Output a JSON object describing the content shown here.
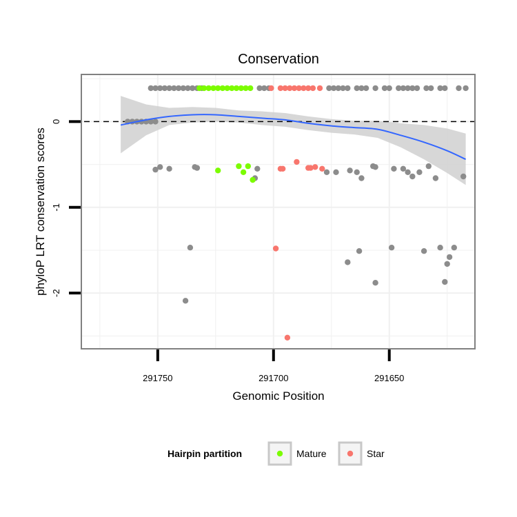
{
  "chart_data": {
    "type": "scatter",
    "title": "Conservation",
    "xlabel": "Genomic Position",
    "ylabel": "phyloP LRT conservation scores",
    "x_reversed": true,
    "xlim": [
      291783,
      291613
    ],
    "ylim": [
      -2.65,
      0.55
    ],
    "x_ticks": [
      291750,
      291700,
      291650
    ],
    "y_ticks": [
      0,
      -1,
      -2
    ],
    "reference_line_y": 0,
    "grid": true,
    "legend": {
      "title": "Hairpin partition",
      "position": "bottom",
      "entries": [
        {
          "label": "Mature",
          "color": "#7cfc00"
        },
        {
          "label": "Star",
          "color": "#f8766d"
        }
      ]
    },
    "colors": {
      "other": "#8c8c8c",
      "mature": "#7cfc00",
      "star": "#f8766d",
      "smooth_line": "#3366ff",
      "ribbon": "#d0d0d0"
    },
    "series": [
      {
        "group": "other",
        "points": [
          [
            291763,
            0
          ],
          [
            291761,
            0
          ],
          [
            291759,
            0
          ],
          [
            291757,
            0
          ],
          [
            291755,
            0
          ],
          [
            291753,
            0
          ],
          [
            291751,
            0
          ],
          [
            291753,
            0.39
          ],
          [
            291751,
            0.39
          ],
          [
            291749,
            0.39
          ],
          [
            291747,
            0.39
          ],
          [
            291745,
            0.39
          ],
          [
            291743,
            0.39
          ],
          [
            291741,
            0.39
          ],
          [
            291739,
            0.39
          ],
          [
            291737,
            0.39
          ],
          [
            291735,
            0.39
          ],
          [
            291733,
            0.39
          ],
          [
            291731,
            0.39
          ],
          [
            291706,
            0.39
          ],
          [
            291704,
            0.39
          ],
          [
            291702,
            0.39
          ],
          [
            291676,
            0.39
          ],
          [
            291674,
            0.39
          ],
          [
            291672,
            0.39
          ],
          [
            291670,
            0.39
          ],
          [
            291668,
            0.39
          ],
          [
            291664,
            0.39
          ],
          [
            291662,
            0.39
          ],
          [
            291660,
            0.39
          ],
          [
            291656,
            0.39
          ],
          [
            291652,
            0.39
          ],
          [
            291650,
            0.39
          ],
          [
            291646,
            0.39
          ],
          [
            291644,
            0.39
          ],
          [
            291642,
            0.39
          ],
          [
            291640,
            0.39
          ],
          [
            291638,
            0.39
          ],
          [
            291634,
            0.39
          ],
          [
            291632,
            0.39
          ],
          [
            291628,
            0.39
          ],
          [
            291626,
            0.39
          ],
          [
            291620,
            0.39
          ],
          [
            291617,
            0.39
          ],
          [
            291751,
            -0.56
          ],
          [
            291749,
            -0.53
          ],
          [
            291745,
            -0.55
          ],
          [
            291734,
            -0.53
          ],
          [
            291733,
            -0.54
          ],
          [
            291707,
            -0.55
          ],
          [
            291708,
            -0.66
          ],
          [
            291677,
            -0.59
          ],
          [
            291673,
            -0.59
          ],
          [
            291667,
            -0.57
          ],
          [
            291664,
            -0.59
          ],
          [
            291662,
            -0.66
          ],
          [
            291657,
            -0.52
          ],
          [
            291656,
            -0.53
          ],
          [
            291648,
            -0.55
          ],
          [
            291644,
            -0.55
          ],
          [
            291642,
            -0.59
          ],
          [
            291640,
            -0.64
          ],
          [
            291637,
            -0.59
          ],
          [
            291633,
            -0.52
          ],
          [
            291630,
            -0.66
          ],
          [
            291618,
            -0.64
          ],
          [
            291736,
            -1.47
          ],
          [
            291668,
            -1.64
          ],
          [
            291663,
            -1.51
          ],
          [
            291656,
            -1.88
          ],
          [
            291649,
            -1.47
          ],
          [
            291635,
            -1.51
          ],
          [
            291628,
            -1.47
          ],
          [
            291625,
            -1.66
          ],
          [
            291624,
            -1.58
          ],
          [
            291626,
            -1.87
          ],
          [
            291622,
            -1.47
          ],
          [
            291738,
            -2.09
          ]
        ]
      },
      {
        "group": "mature",
        "points": [
          [
            291732,
            0.39
          ],
          [
            291730,
            0.39
          ],
          [
            291728,
            0.39
          ],
          [
            291726,
            0.39
          ],
          [
            291724,
            0.39
          ],
          [
            291722,
            0.39
          ],
          [
            291720,
            0.39
          ],
          [
            291718,
            0.39
          ],
          [
            291716,
            0.39
          ],
          [
            291714,
            0.39
          ],
          [
            291712,
            0.39
          ],
          [
            291710,
            0.39
          ],
          [
            291724,
            -0.57
          ],
          [
            291715,
            -0.52
          ],
          [
            291713,
            -0.59
          ],
          [
            291711,
            -0.52
          ],
          [
            291709,
            -0.68
          ]
        ]
      },
      {
        "group": "star",
        "points": [
          [
            291701,
            0.39
          ],
          [
            291697,
            0.39
          ],
          [
            291695,
            0.39
          ],
          [
            291693,
            0.39
          ],
          [
            291691,
            0.39
          ],
          [
            291689,
            0.39
          ],
          [
            291687,
            0.39
          ],
          [
            291685,
            0.39
          ],
          [
            291683,
            0.39
          ],
          [
            291680,
            0.39
          ],
          [
            291699,
            -1.48
          ],
          [
            291697,
            -0.55
          ],
          [
            291696,
            -0.55
          ],
          [
            291690,
            -0.47
          ],
          [
            291685,
            -0.54
          ],
          [
            291684,
            -0.54
          ],
          [
            291682,
            -0.53
          ],
          [
            291679,
            -0.55
          ],
          [
            291694,
            -2.52
          ]
        ]
      }
    ],
    "smooth": {
      "method": "loess",
      "x": [
        291766,
        291755,
        291745,
        291735,
        291725,
        291715,
        291705,
        291695,
        291685,
        291675,
        291665,
        291655,
        291645,
        291635,
        291625,
        291617
      ],
      "y": [
        -0.04,
        0.02,
        0.06,
        0.08,
        0.08,
        0.06,
        0.04,
        0.02,
        -0.02,
        -0.05,
        -0.07,
        -0.09,
        -0.16,
        -0.24,
        -0.34,
        -0.44
      ],
      "lower": [
        -0.37,
        -0.16,
        -0.04,
        -0.01,
        0.0,
        -0.01,
        -0.04,
        -0.06,
        -0.1,
        -0.13,
        -0.15,
        -0.19,
        -0.3,
        -0.44,
        -0.6,
        -0.74
      ],
      "upper": [
        0.3,
        0.2,
        0.16,
        0.17,
        0.16,
        0.13,
        0.12,
        0.1,
        0.06,
        0.03,
        0.01,
        0.01,
        -0.02,
        -0.04,
        -0.08,
        -0.14
      ]
    }
  }
}
